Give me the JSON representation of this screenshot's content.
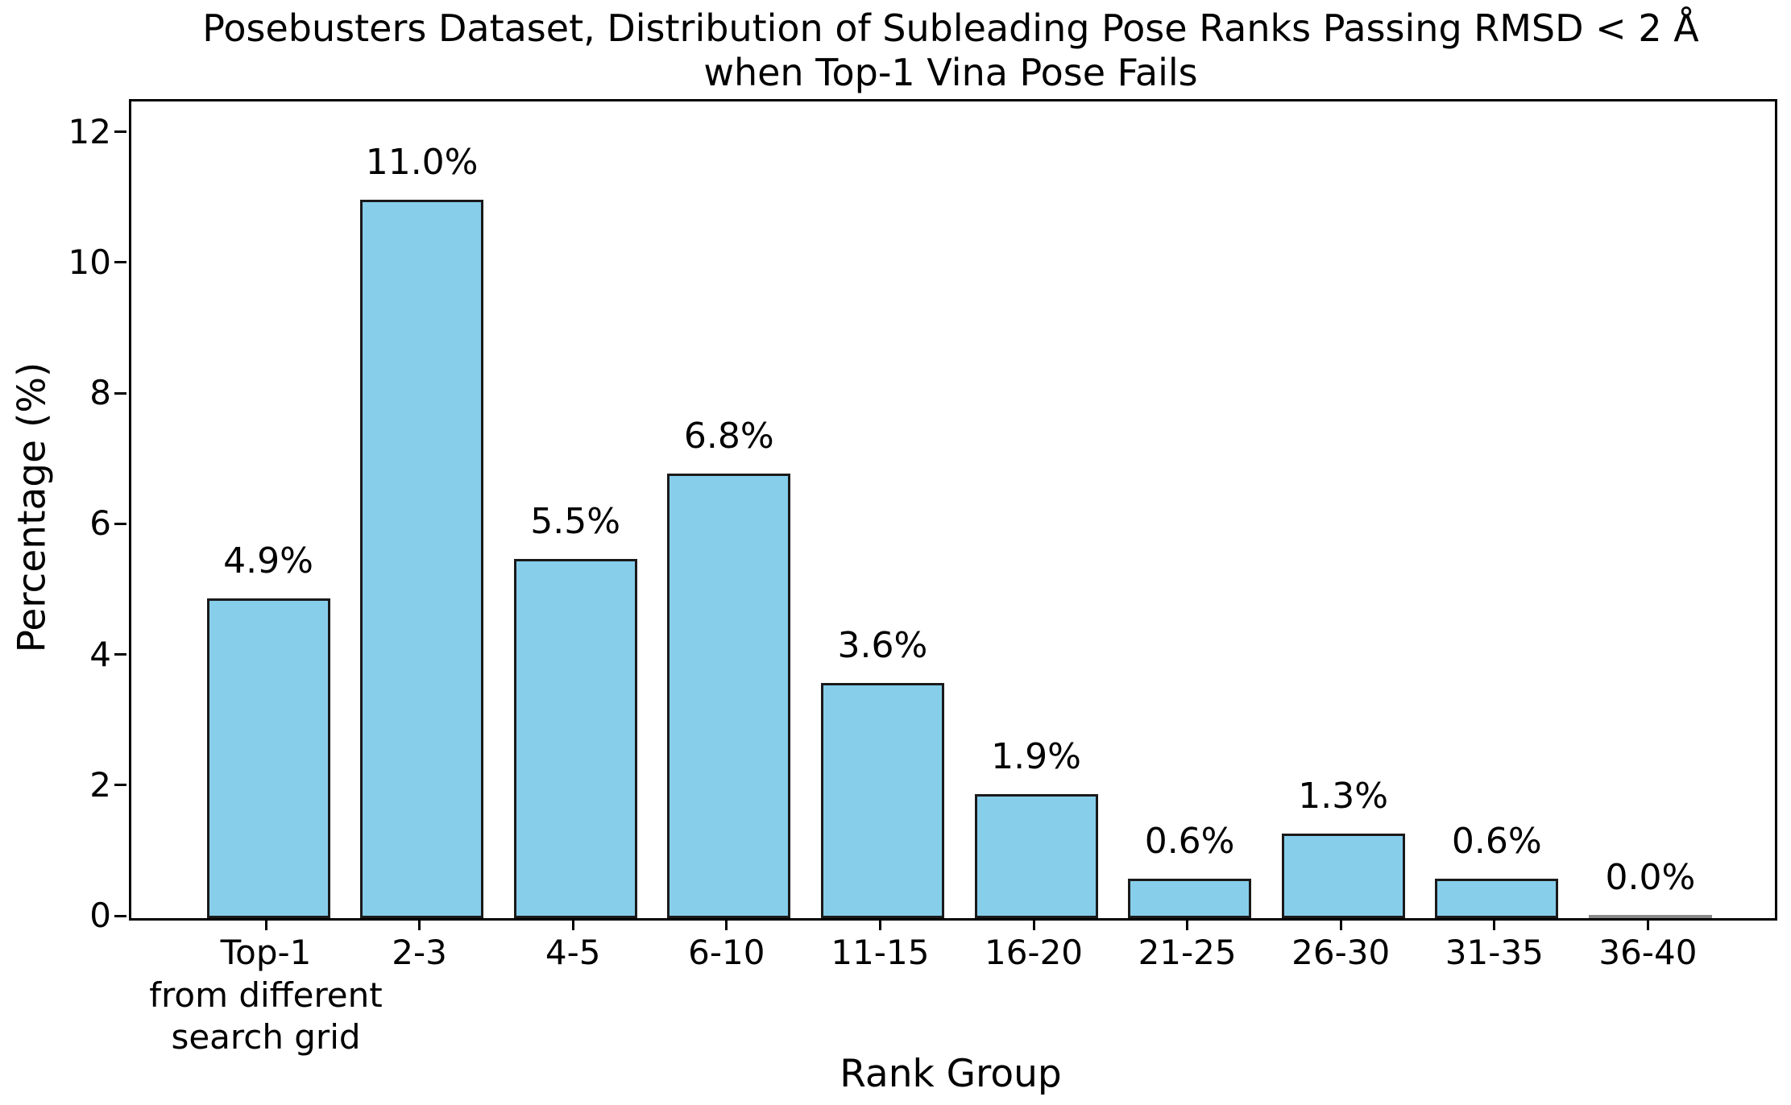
{
  "figure": {
    "background_color": "#ffffff",
    "text_color": "#000000"
  },
  "chart_data": {
    "type": "bar",
    "title": "Posebusters Dataset, Distribution of Subleading Pose Ranks Passing RMSD < 2 Å\nwhen Top-1 Vina Pose Fails",
    "xlabel": "Rank Group",
    "ylabel": "Percentage (%)",
    "categories": [
      "Top-1\nfrom different\nsearch grid",
      "2-3",
      "4-5",
      "6-10",
      "11-15",
      "16-20",
      "21-25",
      "26-30",
      "31-35",
      "36-40"
    ],
    "values": [
      4.9,
      11.0,
      5.5,
      6.8,
      3.6,
      1.9,
      0.6,
      1.3,
      0.6,
      0.0
    ],
    "bar_labels": [
      "4.9%",
      "11.0%",
      "5.5%",
      "6.8%",
      "3.6%",
      "1.9%",
      "0.6%",
      "1.3%",
      "0.6%",
      "0.0%"
    ],
    "yticks": [
      0,
      2,
      4,
      6,
      8,
      10,
      12
    ],
    "ylim": [
      0,
      12.5
    ],
    "grid": false,
    "legend_position": "none",
    "bar_color": "#87CEEB",
    "bar_edge_color": "#1a1a1a",
    "zero_bar_color": "#8a8a8a"
  }
}
